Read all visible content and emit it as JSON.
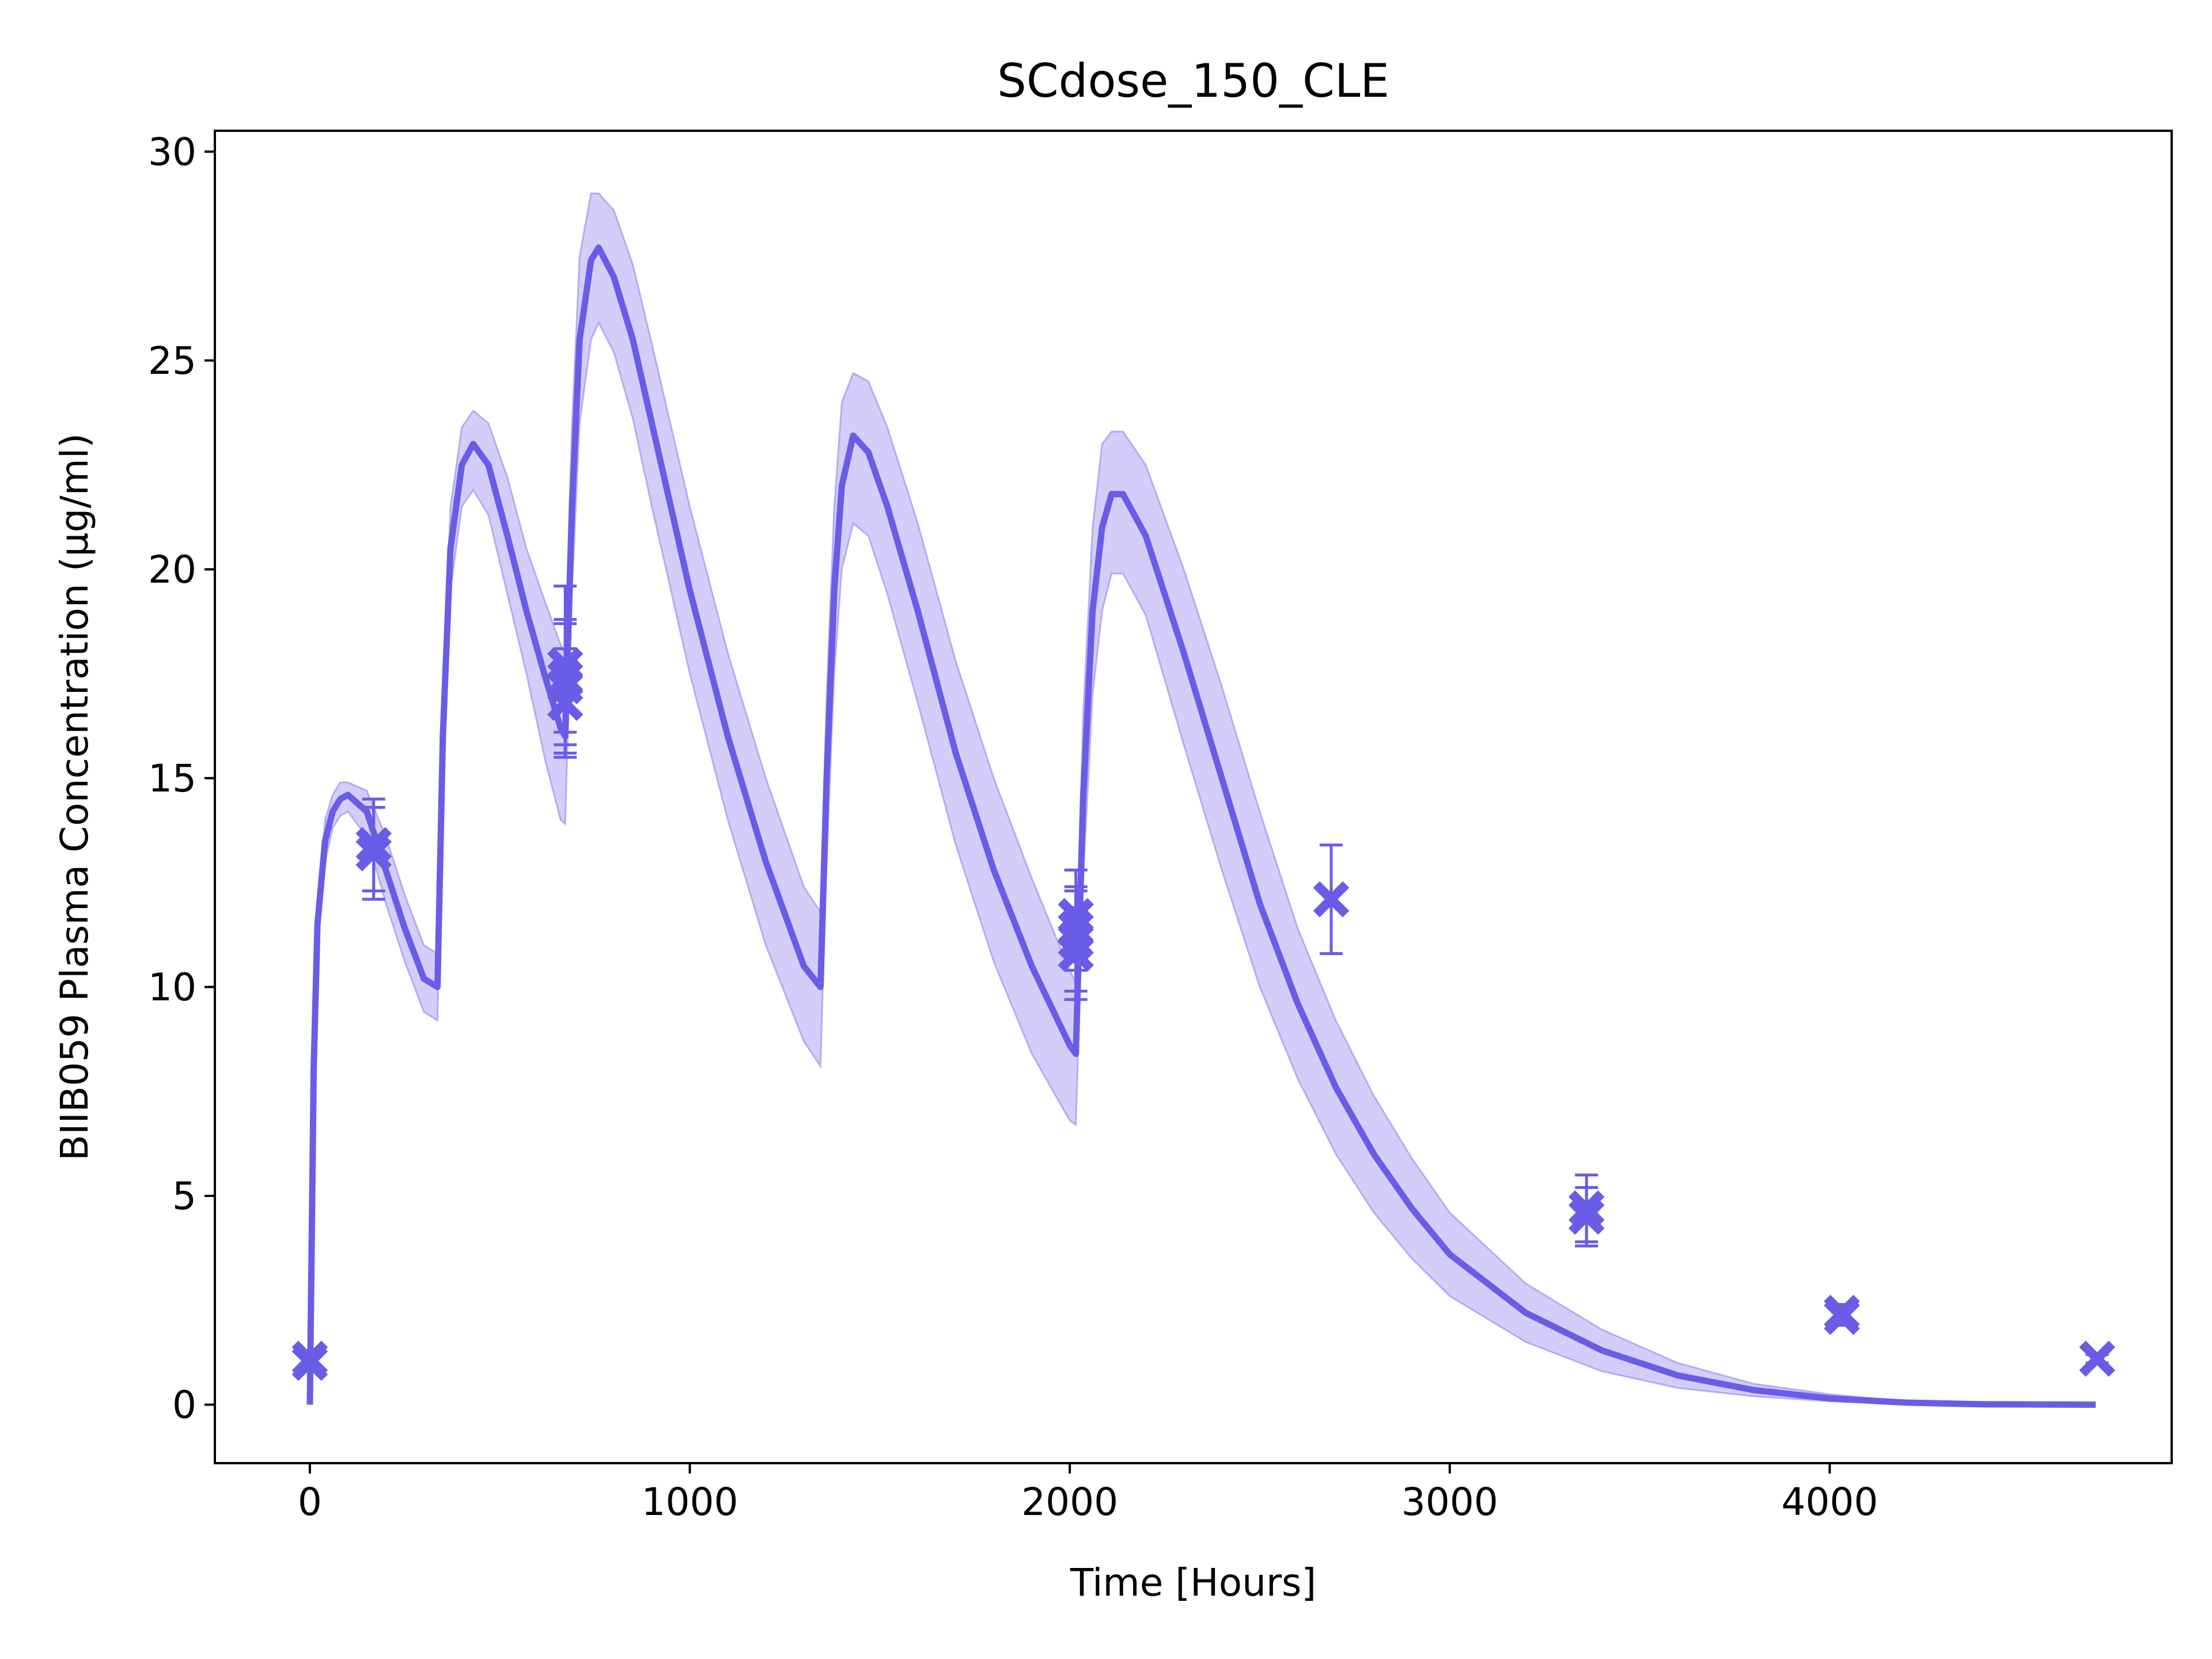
{
  "chart_data": {
    "type": "line",
    "title": "SCdose_150_CLE",
    "xlabel": "Time [Hours]",
    "ylabel": "BIIB059 Plasma Concentration (µg/ml)",
    "xlim": [
      -250,
      4900
    ],
    "ylim": [
      -1.4,
      30.5
    ],
    "xticks": [
      0,
      1000,
      2000,
      3000,
      4000
    ],
    "xtick_labels": [
      "0",
      "1000",
      "2000",
      "3000",
      "4000"
    ],
    "yticks": [
      0,
      5,
      10,
      15,
      20,
      25,
      30
    ],
    "ytick_labels": [
      "0",
      "5",
      "10",
      "15",
      "20",
      "25",
      "30"
    ],
    "grid": false,
    "legend": "none",
    "colors": {
      "line": "#6a5ce6",
      "band": "#7b68ee",
      "marker": "#6a5ce6"
    },
    "series": [
      {
        "kind": "line",
        "x": [
          0,
          10,
          20,
          40,
          60,
          80,
          100,
          150,
          200,
          250,
          300,
          336,
          350,
          370,
          400,
          430,
          470,
          520,
          570,
          620,
          660,
          672,
          690,
          710,
          740,
          760,
          800,
          850,
          900,
          1000,
          1100,
          1200,
          1300,
          1344,
          1360,
          1380,
          1400,
          1430,
          1470,
          1520,
          1600,
          1700,
          1800,
          1900,
          2000,
          2016,
          2035,
          2060,
          2085,
          2110,
          2140,
          2200,
          2300,
          2400,
          2500,
          2600,
          2700,
          2800,
          2900,
          3000,
          3200,
          3400,
          3600,
          3800,
          4000,
          4200,
          4400,
          4700
        ],
        "y": [
          0,
          8.0,
          11.5,
          13.5,
          14.2,
          14.5,
          14.6,
          14.2,
          12.8,
          11.4,
          10.2,
          10.0,
          16.0,
          20.5,
          22.5,
          23.0,
          22.5,
          20.8,
          19.0,
          17.4,
          16.2,
          16.0,
          21.5,
          25.5,
          27.4,
          27.7,
          27.0,
          25.5,
          23.5,
          19.5,
          16.0,
          13.0,
          10.5,
          10.0,
          15.0,
          19.5,
          22.0,
          23.2,
          22.8,
          21.5,
          19.0,
          15.6,
          12.8,
          10.5,
          8.6,
          8.4,
          14.5,
          19.0,
          21.0,
          21.8,
          21.8,
          20.8,
          18.0,
          15.0,
          12.0,
          9.6,
          7.6,
          6.0,
          4.7,
          3.6,
          2.2,
          1.3,
          0.7,
          0.35,
          0.15,
          0.05,
          0.01,
          0.0
        ],
        "lower": [
          0,
          7.6,
          11.0,
          13.0,
          13.8,
          14.1,
          14.2,
          13.6,
          12.0,
          10.6,
          9.4,
          9.2,
          15.0,
          19.5,
          21.5,
          21.9,
          21.3,
          19.4,
          17.5,
          15.4,
          14.0,
          13.9,
          19.5,
          23.5,
          25.5,
          25.9,
          25.2,
          23.6,
          21.5,
          17.5,
          14.0,
          11.0,
          8.7,
          8.1,
          13.0,
          17.5,
          20.0,
          21.1,
          20.8,
          19.4,
          16.8,
          13.4,
          10.6,
          8.4,
          6.8,
          6.7,
          12.5,
          17.0,
          19.0,
          19.9,
          19.9,
          18.9,
          15.8,
          12.8,
          10.0,
          7.8,
          6.0,
          4.6,
          3.5,
          2.6,
          1.5,
          0.8,
          0.4,
          0.2,
          0.08,
          0.02,
          0.0,
          0.0
        ],
        "upper": [
          0,
          8.4,
          12.0,
          14.0,
          14.6,
          14.9,
          14.9,
          14.7,
          13.6,
          12.2,
          11.0,
          10.8,
          17.0,
          21.5,
          23.4,
          23.8,
          23.5,
          22.2,
          20.5,
          19.2,
          18.2,
          18.0,
          23.5,
          27.5,
          29.0,
          29.0,
          28.6,
          27.3,
          25.4,
          21.5,
          18.0,
          15.0,
          12.4,
          11.8,
          17.0,
          21.5,
          24.0,
          24.7,
          24.5,
          23.4,
          21.1,
          17.8,
          15.0,
          12.6,
          10.4,
          10.1,
          16.5,
          21.0,
          23.0,
          23.3,
          23.3,
          22.5,
          20.0,
          17.2,
          14.2,
          11.4,
          9.2,
          7.4,
          5.9,
          4.6,
          2.9,
          1.8,
          1.0,
          0.5,
          0.25,
          0.08,
          0.02,
          0.0
        ]
      },
      {
        "kind": "scatter",
        "marker": "X",
        "points": [
          {
            "x": 0,
            "y": 1.1,
            "err": 0.2
          },
          {
            "x": 0,
            "y": 1.0,
            "err": 0.2
          },
          {
            "x": 168,
            "y": 13.4,
            "err": 1.1
          },
          {
            "x": 168,
            "y": 13.2,
            "err": 1.1
          },
          {
            "x": 672,
            "y": 17.7,
            "err": 1.9
          },
          {
            "x": 672,
            "y": 17.4,
            "err": 1.3
          },
          {
            "x": 672,
            "y": 17.2,
            "err": 1.6
          },
          {
            "x": 672,
            "y": 16.8,
            "err": 1.3
          },
          {
            "x": 2016,
            "y": 11.7,
            "err": 1.1
          },
          {
            "x": 2016,
            "y": 11.4,
            "err": 1.0
          },
          {
            "x": 2016,
            "y": 11.1,
            "err": 1.2
          },
          {
            "x": 2016,
            "y": 10.8,
            "err": 1.1
          },
          {
            "x": 2688,
            "y": 12.1,
            "err": 1.3
          },
          {
            "x": 3360,
            "y": 4.7,
            "err": 0.8
          },
          {
            "x": 3360,
            "y": 4.5,
            "err": 0.7
          },
          {
            "x": 4032,
            "y": 2.2,
            "err": 0.2
          },
          {
            "x": 4032,
            "y": 2.1,
            "err": 0.2
          },
          {
            "x": 4704,
            "y": 1.1,
            "err": 0.1
          }
        ]
      }
    ]
  }
}
